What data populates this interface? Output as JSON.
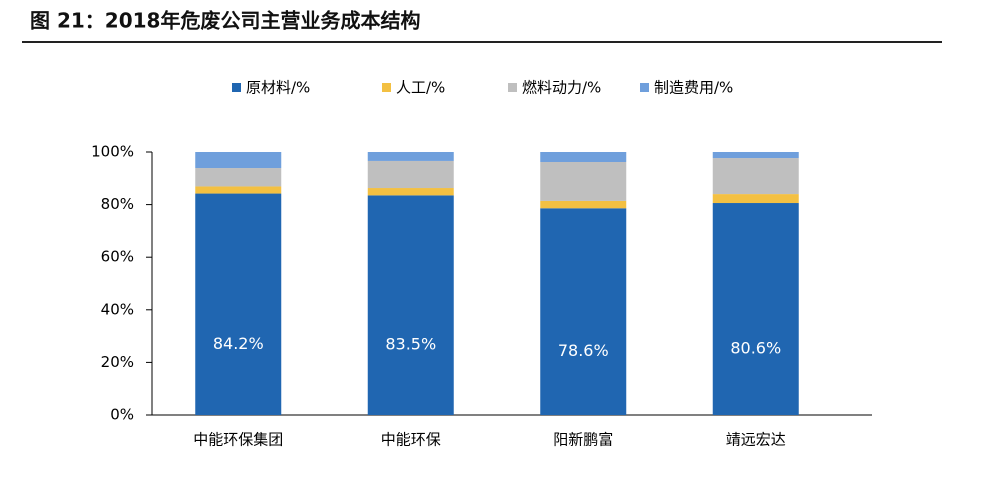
{
  "chart_data": {
    "type": "stacked_bar",
    "title": "图 21：2018年危废公司主营业务成本结构",
    "categories": [
      "中能环保集团",
      "中能环保",
      "阳新鹏富",
      "靖远宏达"
    ],
    "series": [
      {
        "name": "原材料/%",
        "color": "#2066b1",
        "values": [
          84.2,
          83.5,
          78.6,
          80.6
        ],
        "value_labels": [
          "84.2%",
          "83.5%",
          "78.6%",
          "80.6%"
        ]
      },
      {
        "name": "人工/%",
        "color": "#f3c042",
        "values": [
          2.7,
          2.8,
          2.8,
          3.4
        ]
      },
      {
        "name": "燃料动力/%",
        "color": "#bfbfbf",
        "values": [
          7.0,
          10.3,
          14.8,
          13.7
        ]
      },
      {
        "name": "制造费用/%",
        "color": "#6f9fdc",
        "values": [
          6.1,
          3.4,
          3.8,
          2.3
        ]
      }
    ],
    "ylim": [
      0,
      100
    ],
    "yticks": [
      {
        "value": 0,
        "label": "0%"
      },
      {
        "value": 20,
        "label": "20%"
      },
      {
        "value": 40,
        "label": "40%"
      },
      {
        "value": 60,
        "label": "60%"
      },
      {
        "value": 80,
        "label": "80%"
      },
      {
        "value": 100,
        "label": "100%"
      }
    ]
  }
}
